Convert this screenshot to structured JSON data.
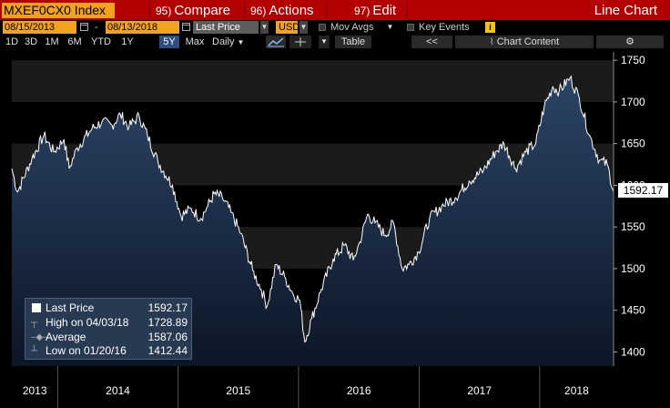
{
  "titlebar": {
    "ticker": "MXEF0CX0 Index",
    "menus": [
      {
        "num": "95)",
        "label": "Compare"
      },
      {
        "num": "96)",
        "label": "Actions"
      },
      {
        "num": "97)",
        "label": "Edit"
      }
    ],
    "right_title": "Line Chart"
  },
  "controls": {
    "start_date": "08/15/2013",
    "end_date": "08/13/2018",
    "field": "Last Price",
    "currency": "USD",
    "mov_avgs": "Mov Avgs",
    "key_events": "Key Events",
    "info": "i"
  },
  "ranges": [
    "1D",
    "3D",
    "1M",
    "6M",
    "YTD",
    "1Y",
    "5Y",
    "Max"
  ],
  "active_range": "5Y",
  "toolbar": {
    "frequency": "Daily",
    "table_label": "Table",
    "nav_back": "<<",
    "chart_content": "Chart Content"
  },
  "chart_data": {
    "type": "line",
    "title": "",
    "xlabel": "",
    "ylabel": "",
    "x_ticks": [
      "2013",
      "2014",
      "2015",
      "2016",
      "2017",
      "2018"
    ],
    "y_ticks": [
      1400,
      1450,
      1500,
      1550,
      1600,
      1650,
      1700,
      1750
    ],
    "ylim": [
      1383,
      1760
    ],
    "x_range": [
      "2013-08-15",
      "2018-08-13"
    ],
    "series": [
      {
        "name": "Last Price",
        "points": [
          [
            "2013-08-15",
            1620
          ],
          [
            "2013-09-01",
            1592
          ],
          [
            "2013-10-15",
            1632
          ],
          [
            "2013-11-20",
            1660
          ],
          [
            "2013-12-20",
            1640
          ],
          [
            "2014-01-20",
            1655
          ],
          [
            "2014-02-05",
            1620
          ],
          [
            "2014-03-01",
            1645
          ],
          [
            "2014-04-15",
            1668
          ],
          [
            "2014-05-15",
            1676
          ],
          [
            "2014-06-15",
            1672
          ],
          [
            "2014-07-10",
            1685
          ],
          [
            "2014-08-05",
            1670
          ],
          [
            "2014-09-05",
            1683
          ],
          [
            "2014-09-30",
            1660
          ],
          [
            "2014-11-01",
            1628
          ],
          [
            "2014-12-15",
            1600
          ],
          [
            "2015-01-10",
            1563
          ],
          [
            "2015-02-10",
            1572
          ],
          [
            "2015-03-10",
            1560
          ],
          [
            "2015-04-01",
            1575
          ],
          [
            "2015-04-20",
            1590
          ],
          [
            "2015-05-15",
            1585
          ],
          [
            "2015-06-10",
            1568
          ],
          [
            "2015-07-10",
            1542
          ],
          [
            "2015-08-15",
            1498
          ],
          [
            "2015-09-10",
            1475
          ],
          [
            "2015-09-28",
            1455
          ],
          [
            "2015-10-25",
            1505
          ],
          [
            "2015-11-20",
            1490
          ],
          [
            "2015-12-15",
            1470
          ],
          [
            "2016-01-05",
            1462
          ],
          [
            "2016-01-20",
            1412
          ],
          [
            "2016-02-10",
            1440
          ],
          [
            "2016-03-10",
            1475
          ],
          [
            "2016-04-15",
            1512
          ],
          [
            "2016-05-20",
            1528
          ],
          [
            "2016-06-15",
            1510
          ],
          [
            "2016-07-05",
            1532
          ],
          [
            "2016-07-28",
            1565
          ],
          [
            "2016-08-20",
            1555
          ],
          [
            "2016-09-20",
            1540
          ],
          [
            "2016-10-15",
            1555
          ],
          [
            "2016-11-10",
            1500
          ],
          [
            "2016-12-01",
            1505
          ],
          [
            "2016-12-30",
            1520
          ],
          [
            "2017-02-01",
            1560
          ],
          [
            "2017-03-10",
            1575
          ],
          [
            "2017-04-20",
            1585
          ],
          [
            "2017-06-01",
            1605
          ],
          [
            "2017-07-15",
            1618
          ],
          [
            "2017-08-20",
            1640
          ],
          [
            "2017-09-15",
            1650
          ],
          [
            "2017-10-20",
            1620
          ],
          [
            "2017-11-20",
            1640
          ],
          [
            "2017-12-20",
            1650
          ],
          [
            "2018-01-15",
            1695
          ],
          [
            "2018-02-10",
            1718
          ],
          [
            "2018-03-01",
            1713
          ],
          [
            "2018-04-03",
            1728.89
          ],
          [
            "2018-05-01",
            1705
          ],
          [
            "2018-06-01",
            1660
          ],
          [
            "2018-07-01",
            1630
          ],
          [
            "2018-07-25",
            1625
          ],
          [
            "2018-08-13",
            1592.17
          ]
        ]
      }
    ]
  },
  "legend": {
    "last_price_label": "Last Price",
    "last_price_value": "1592.17",
    "high_label": "High on 04/03/18",
    "high_value": "1728.89",
    "average_label": "Average",
    "average_value": "1587.06",
    "low_label": "Low on 01/20/16",
    "low_value": "1412.44"
  },
  "last_price_badge": "1592.17",
  "colors": {
    "titlebar": "#b30000",
    "ticker_bg": "#f1a31e",
    "line": "#ffffff",
    "fill_top": "#2c4466",
    "fill_bottom": "#0c1626",
    "active_range": "#2b4f83"
  }
}
